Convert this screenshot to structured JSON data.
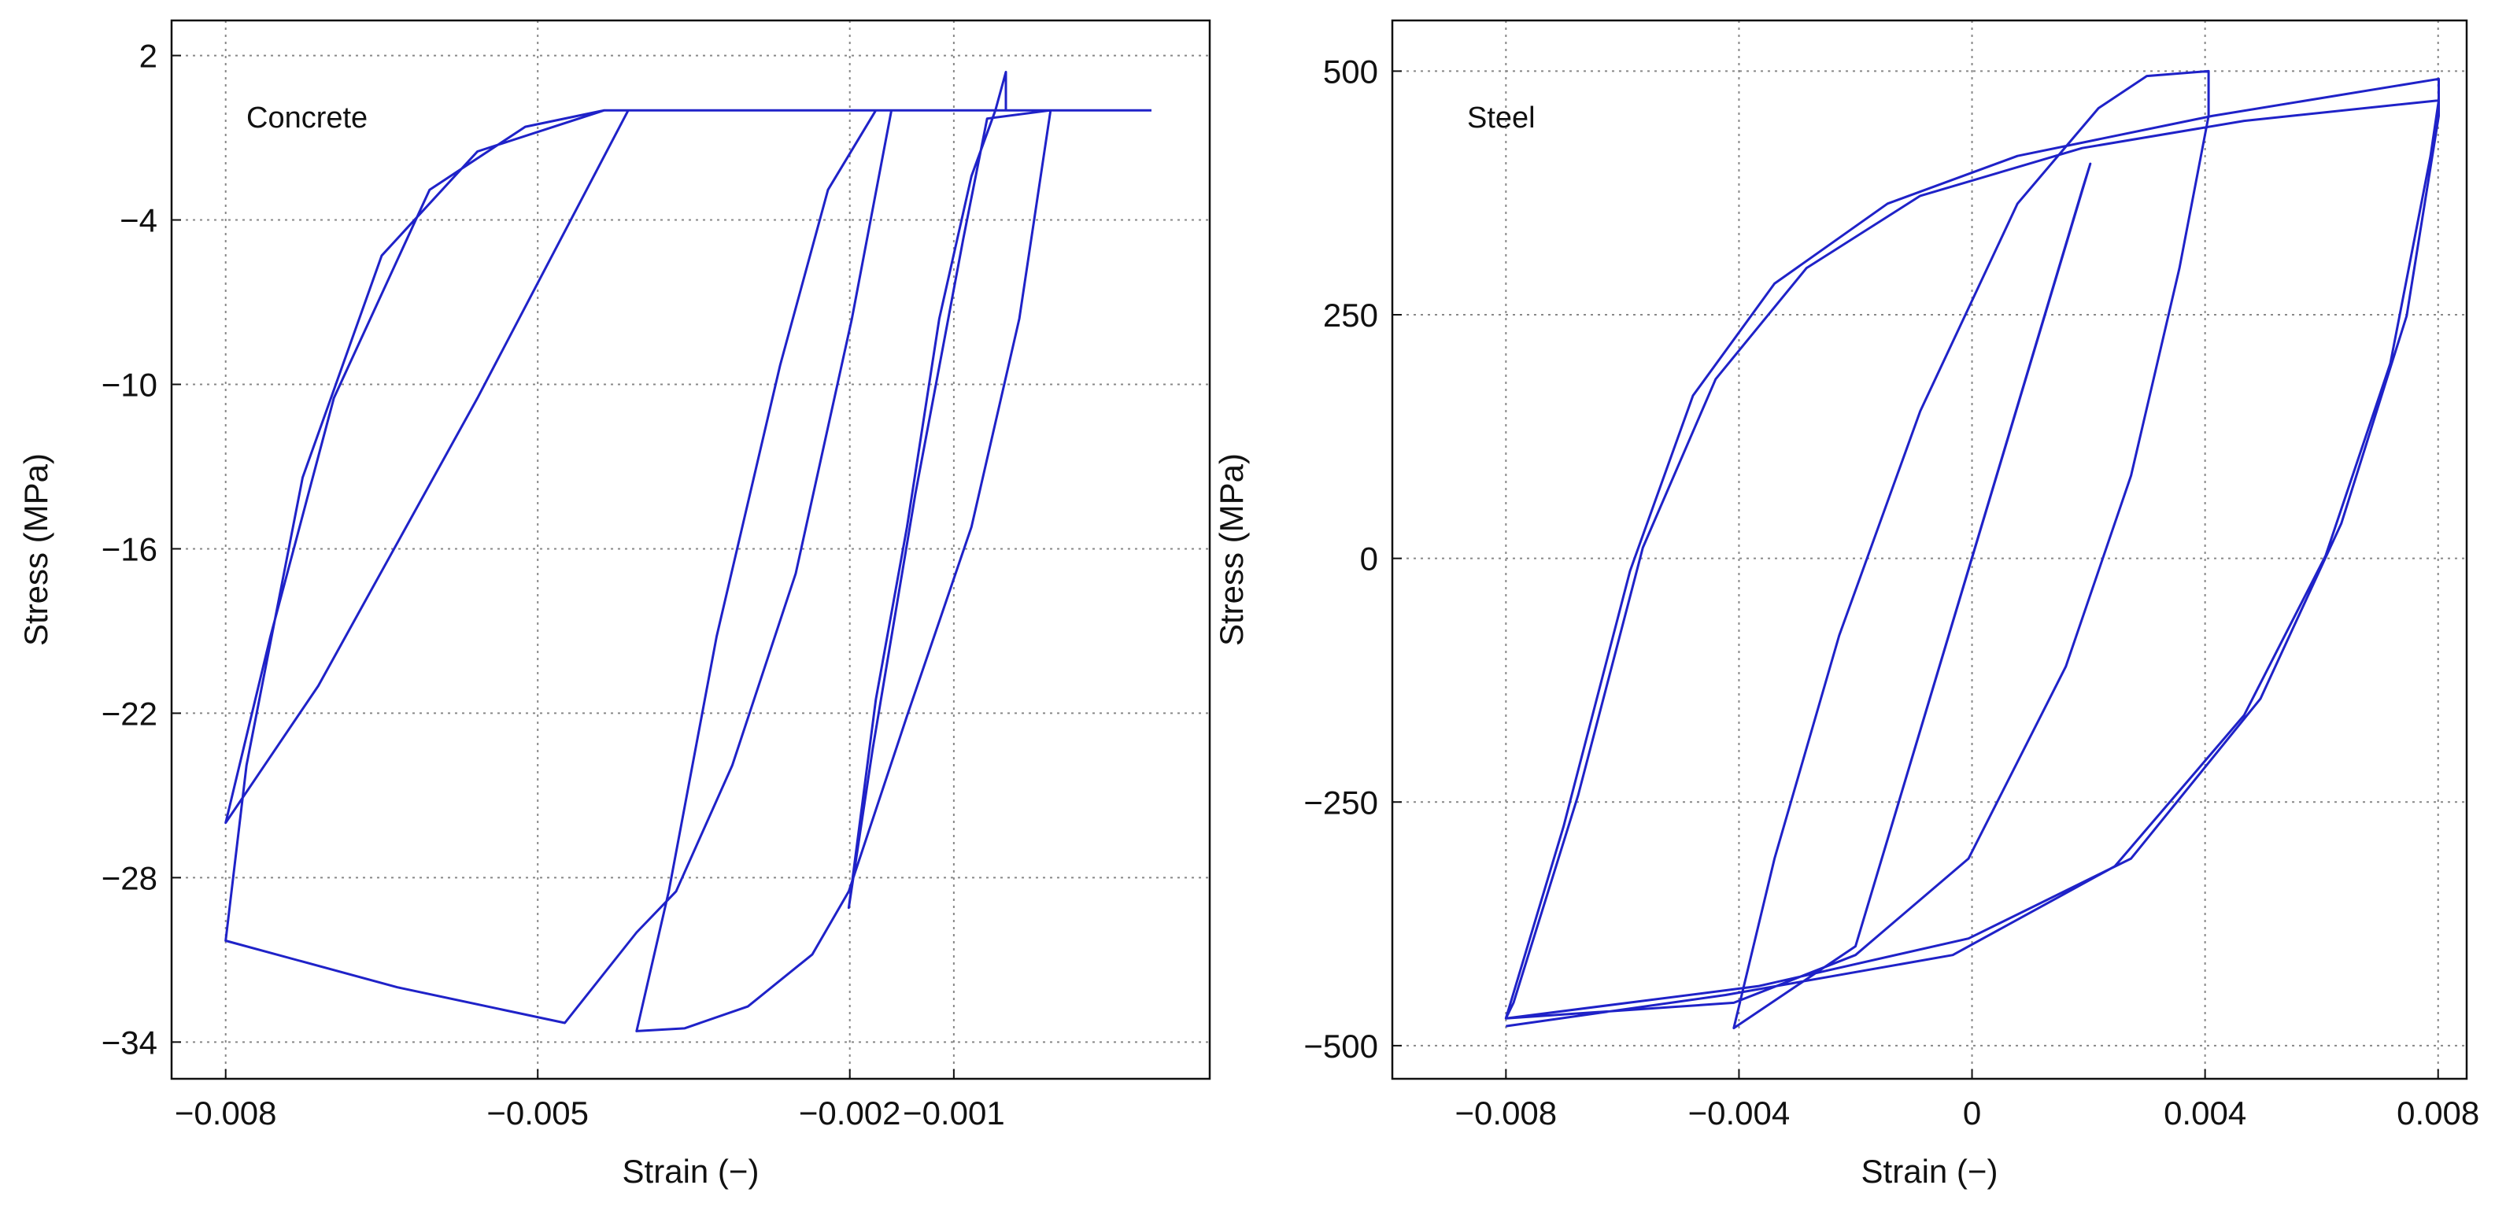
{
  "chart_data": [
    {
      "type": "line",
      "annotation": "Concrete",
      "xlabel": "Strain (−)",
      "ylabel": "Stress (MPa)",
      "color": "#1f22c8",
      "grid": true,
      "xlim": [
        -0.00852,
        0.00146
      ],
      "ylim": [
        -35.34,
        3.28
      ],
      "xticks": [
        {
          "value": -0.008,
          "label": "−0.008"
        },
        {
          "value": -0.005,
          "label": "−0.005"
        },
        {
          "value": -0.002,
          "label": "−0.002"
        },
        {
          "value": -0.001,
          "label": "−0.001"
        }
      ],
      "yticks": [
        2,
        {
          "value": -4,
          "label": "−4"
        },
        {
          "value": -10,
          "label": "−10"
        },
        {
          "value": -16,
          "label": "−16"
        },
        {
          "value": -22,
          "label": "−22"
        },
        {
          "value": -28,
          "label": "−28"
        },
        {
          "value": -34,
          "label": "−34"
        }
      ],
      "x": [
        0.0009,
        -0.0005,
        -0.0005,
        -0.0006,
        -0.00083,
        -0.00114,
        -0.00145,
        -0.00175,
        -0.00201,
        -0.00178,
        -0.00137,
        -0.00091,
        -0.00068,
        -7e-05,
        -0.00037,
        -0.00083,
        -0.00145,
        -0.00201,
        -0.00236,
        -0.00298,
        -0.00359,
        -0.00405,
        -0.00374,
        -0.00328,
        -0.00267,
        -0.00221,
        -0.00175,
        -0.0016,
        -0.00198,
        -0.00252,
        -0.00313,
        -0.00367,
        -0.00405,
        -0.00474,
        -0.00635,
        -0.008,
        -0.0078,
        -0.00726,
        -0.0065,
        -0.00558,
        -0.00436,
        -0.00413,
        -0.00558,
        -0.00711,
        -0.008,
        -0.00757,
        -0.00696,
        -0.00604,
        -0.00512,
        -0.00436,
        0.0009
      ],
      "values": [
        0,
        0,
        1.4,
        0,
        -2.4,
        -7.6,
        -15.2,
        -21.5,
        -29.1,
        -23.3,
        -14.0,
        -4.7,
        -0.3,
        0,
        -7.6,
        -15.2,
        -22.1,
        -28.5,
        -30.8,
        -32.7,
        -33.5,
        -33.6,
        -28.5,
        -19.2,
        -9.3,
        -2.9,
        0,
        0,
        -7.6,
        -16.9,
        -23.9,
        -28.5,
        -30.0,
        -33.3,
        -32.0,
        -30.3,
        -23.9,
        -13.4,
        -5.3,
        -1.5,
        0,
        0,
        -10.5,
        -21.0,
        -26.0,
        -19.2,
        -10.5,
        -2.9,
        -0.6,
        0,
        0
      ]
    },
    {
      "type": "line",
      "annotation": "Steel",
      "xlabel": "Strain (−)",
      "ylabel": "Stress (MPa)",
      "color": "#1f22c8",
      "grid": true,
      "xlim": [
        -0.00995,
        0.00849
      ],
      "ylim": [
        -534,
        552
      ],
      "xticks": [
        {
          "value": -0.008,
          "label": "−0.008"
        },
        {
          "value": -0.004,
          "label": "−0.004"
        },
        0,
        0.004,
        0.008
      ],
      "yticks": [
        500,
        250,
        0,
        {
          "value": -250,
          "label": "−250"
        },
        {
          "value": -500,
          "label": "−500"
        }
      ],
      "x": [
        -0.002,
        0.00203,
        0.0019,
        -0.002,
        -0.00409,
        -0.00339,
        -0.00228,
        -0.00089,
        0.00078,
        0.00217,
        0.003,
        0.00406,
        0.00406,
        0.00356,
        0.00273,
        0.00161,
        -6e-05,
        -0.002,
        -0.00409,
        -0.008,
        -0.00701,
        -0.00587,
        -0.00479,
        -0.00339,
        -0.00145,
        0.00078,
        0.00412,
        0.00801,
        0.00801,
        0.00746,
        0.00634,
        0.00495,
        0.00273,
        -6e-05,
        -0.00367,
        -0.008,
        -0.00787,
        -0.00676,
        -0.00565,
        -0.0044,
        -0.00284,
        -0.00089,
        0.00189,
        0.00467,
        0.00801,
        0.00787,
        0.00718,
        0.00607,
        0.00467,
        0.00245,
        -0.00033,
        -0.00423,
        -0.008
      ],
      "values": [
        -398,
        405,
        380,
        -398,
        -482,
        -308,
        -79,
        151,
        364,
        462,
        495,
        500,
        454,
        298,
        85,
        -111,
        -308,
        -407,
        -456,
        -472,
        -275,
        -13,
        167,
        282,
        364,
        413,
        454,
        492,
        454,
        249,
        36,
        -144,
        -308,
        -390,
        -439,
        -472,
        -456,
        -243,
        11,
        184,
        298,
        372,
        421,
        449,
        470,
        413,
        200,
        3,
        -161,
        -316,
        -407,
        -448,
        -480
      ]
    }
  ]
}
